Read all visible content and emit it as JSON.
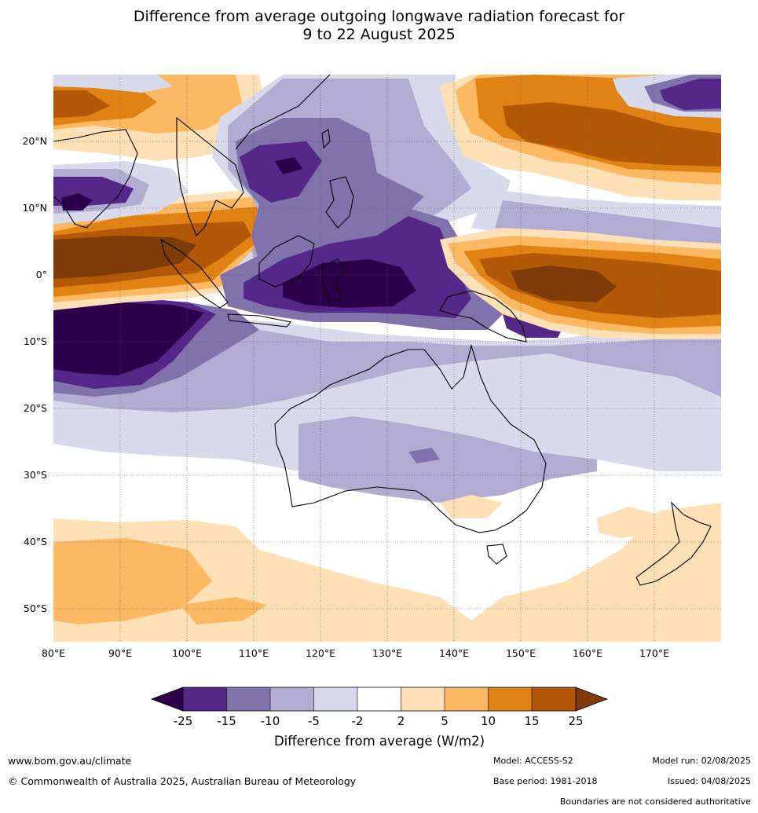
{
  "title": {
    "line1": "Difference from average outgoing longwave radiation forecast for",
    "line2": "9 to 22 August 2025"
  },
  "map": {
    "lat_labels": [
      "20°N",
      "10°N",
      "0°",
      "10°S",
      "20°S",
      "30°S",
      "40°S",
      "50°S"
    ],
    "lon_labels": [
      "80°E",
      "90°E",
      "100°E",
      "110°E",
      "120°E",
      "130°E",
      "140°E",
      "150°E",
      "160°E",
      "170°E"
    ],
    "extent": {
      "lon_min": 80,
      "lon_max": 180,
      "lat_min": -55,
      "lat_max": 30
    }
  },
  "colorbar": {
    "ticks": [
      "-25",
      "-15",
      "-10",
      "-5",
      "-2",
      "2",
      "5",
      "10",
      "15",
      "25"
    ],
    "colors": [
      "#2d004b",
      "#542788",
      "#8073ac",
      "#b2abd2",
      "#d8daeb",
      "#ffffff",
      "#fee0b6",
      "#fdb863",
      "#e08214",
      "#b35806",
      "#7f3b08"
    ],
    "label": "Difference from average (W/m2)"
  },
  "footer": {
    "website": "www.bom.gov.au/climate",
    "copyright": "© Commonwealth of Australia 2025, Australian Bureau of Meteorology",
    "model": "Model: ACCESS-S2",
    "base_period": "Base period: 1981-2018",
    "model_run": "Model run: 02/08/2025",
    "issued": "Issued: 04/08/2025",
    "disclaimer": "Boundaries are not considered authoritative"
  }
}
